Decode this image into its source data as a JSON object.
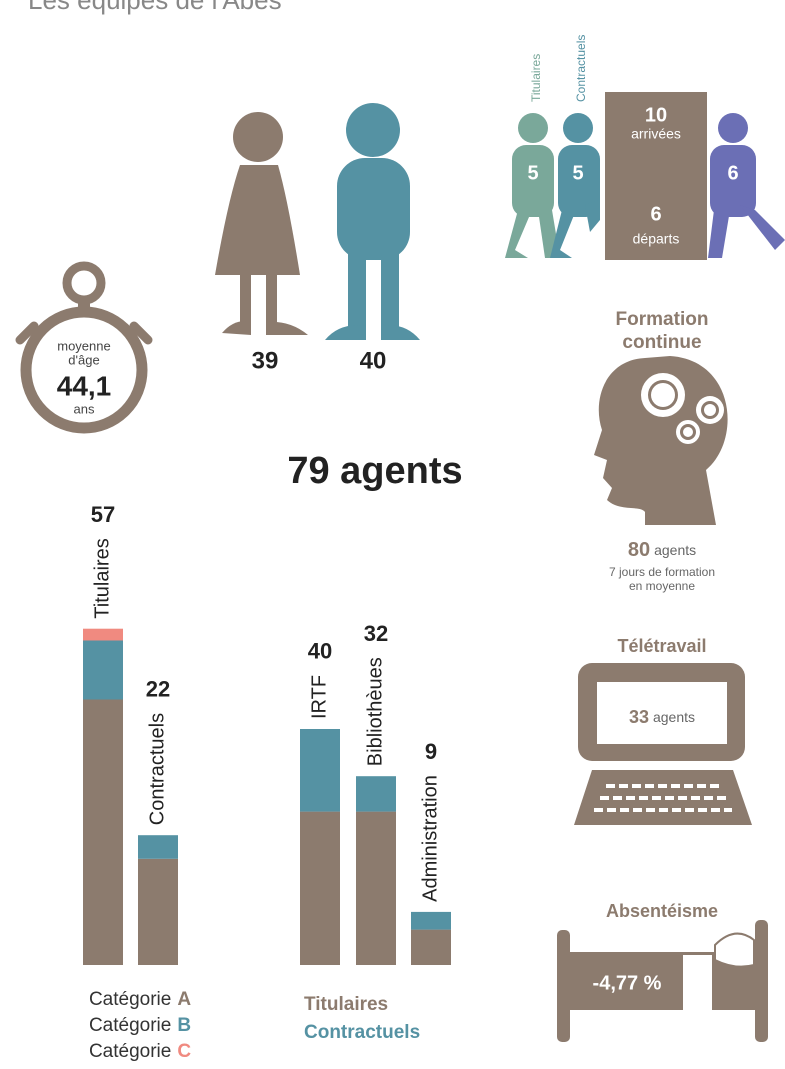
{
  "title": "Les équipes de l'Abes",
  "gender": {
    "women": 39,
    "men": 40
  },
  "movement": {
    "labels": [
      "Titulaires",
      "Contractuels"
    ],
    "titulaires": 5,
    "contractuels": 5,
    "arrivals": 10,
    "arrivals_label": "arrivées",
    "departures": 6,
    "departures_label": "départs",
    "departing": 6
  },
  "age": {
    "label_1": "moyenne",
    "label_2": "d'âge",
    "value": "44,1",
    "unit": "ans"
  },
  "total": "79 agents",
  "formation": {
    "title_1": "Formation",
    "title_2": "continue",
    "agents": 80,
    "agents_label": "agents",
    "line_1": "7 jours de formation",
    "line_2": "en moyenne"
  },
  "teletravail": {
    "title": "Télétravail",
    "agents": 33,
    "agents_label": "agents"
  },
  "absenteisme": {
    "title": "Absentéisme",
    "value": "-4,77 %"
  },
  "chart_data": [
    {
      "type": "bar",
      "stacked": true,
      "categories": [
        "Titulaires",
        "Contractuels"
      ],
      "totals": [
        57,
        22
      ],
      "legend_label": "Catégorie",
      "series": [
        {
          "name": "A",
          "color": "#8c7b6e",
          "values": [
            45,
            18
          ]
        },
        {
          "name": "B",
          "color": "#5592a3",
          "values": [
            10,
            4
          ]
        },
        {
          "name": "C",
          "color": "#f08a80",
          "values": [
            2,
            0
          ]
        }
      ]
    },
    {
      "type": "bar",
      "stacked": true,
      "categories": [
        "IRTF",
        "Bibliothèues",
        "Administration"
      ],
      "totals": [
        40,
        32,
        9
      ],
      "series": [
        {
          "name": "Titulaires",
          "color": "#8c7b6e",
          "values": [
            26,
            26,
            6
          ]
        },
        {
          "name": "Contractuels",
          "color": "#5592a3",
          "values": [
            14,
            6,
            3
          ]
        }
      ]
    }
  ]
}
